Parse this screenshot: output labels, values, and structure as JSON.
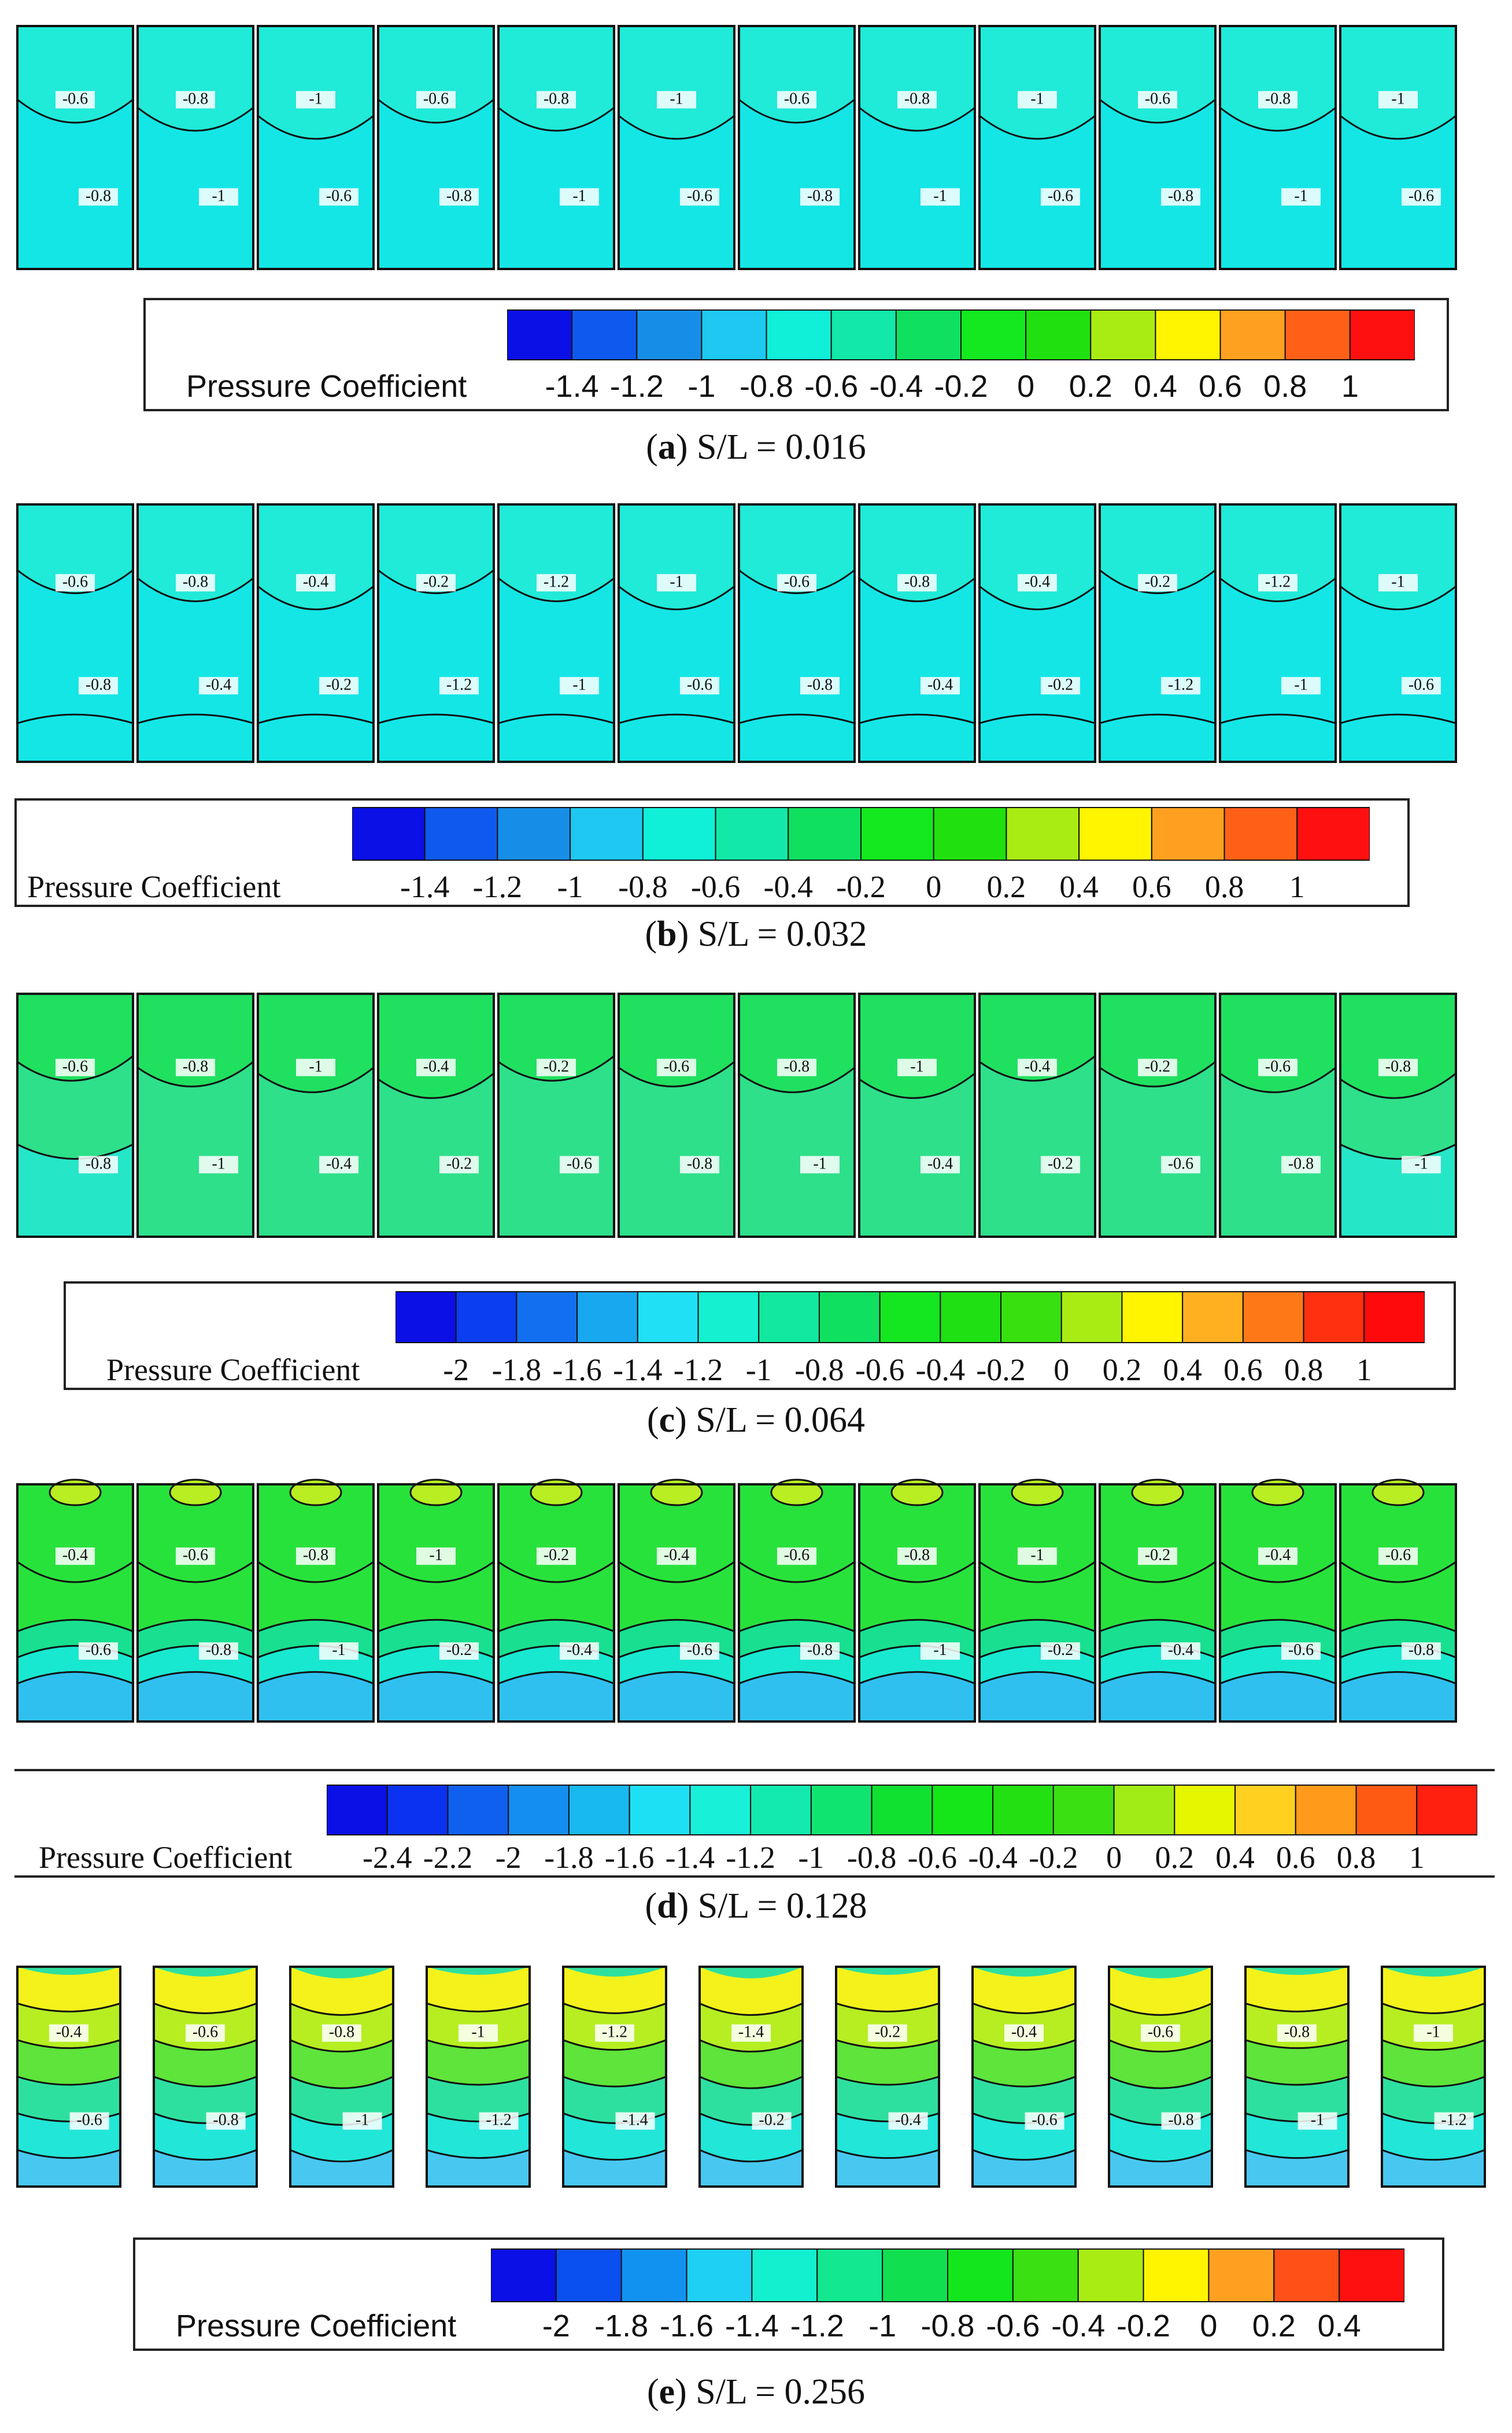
{
  "figure": {
    "panels": [
      {
        "id": "a",
        "letter": "a",
        "caption_rest": " S/L = 0.016",
        "legend_title": "Pressure Coefficient",
        "legend_ticks": [
          "-1.4",
          "-1.2",
          "-1",
          "-0.8",
          "-0.6",
          "-0.4",
          "-0.2",
          "0",
          "0.2",
          "0.4",
          "0.6",
          "0.8",
          "1"
        ],
        "legend_colors": [
          "#0a10e6",
          "#0f5aee",
          "#168ee8",
          "#1ec8f0",
          "#10f0d8",
          "#12e8a8",
          "#0fe060",
          "#14e81e",
          "#20e010",
          "#a8ec14",
          "#fff500",
          "#ffa020",
          "#ff6018",
          "#ff1010"
        ],
        "field_color": "#14e6e6",
        "contour_labels": [
          "-0.6",
          "-0.8",
          "-1"
        ]
      },
      {
        "id": "b",
        "letter": "b",
        "caption_rest": " S/L = 0.032",
        "legend_title": "Pressure Coefficient",
        "legend_ticks": [
          "-1.4",
          "-1.2",
          "-1",
          "-0.8",
          "-0.6",
          "-0.4",
          "-0.2",
          "0",
          "0.2",
          "0.4",
          "0.6",
          "0.8",
          "1"
        ],
        "legend_colors": [
          "#0a10e6",
          "#0f5aee",
          "#168ee8",
          "#1ec8f0",
          "#10f0d8",
          "#12e8a8",
          "#0fe060",
          "#14e81e",
          "#20e010",
          "#a8ec14",
          "#fff500",
          "#ffa020",
          "#ff6018",
          "#ff1010"
        ],
        "field_color": "#14e6e6",
        "contour_labels": [
          "-0.6",
          "-0.8",
          "-0.4",
          "-0.2",
          "-1.2",
          "-1"
        ]
      },
      {
        "id": "c",
        "letter": "c",
        "caption_rest": " S/L = 0.064",
        "legend_title": "Pressure Coefficient",
        "legend_ticks": [
          "-2",
          "-1.8",
          "-1.6",
          "-1.4",
          "-1.2",
          "-1",
          "-0.8",
          "-0.6",
          "-0.4",
          "-0.2",
          "0",
          "0.2",
          "0.4",
          "0.6",
          "0.8",
          "1"
        ],
        "legend_colors": [
          "#0a10e6",
          "#0a3ef0",
          "#1270f0",
          "#18a8f0",
          "#20e0f6",
          "#14f0d0",
          "#12e8a0",
          "#10e060",
          "#14e620",
          "#1ee012",
          "#38e010",
          "#a8ec14",
          "#fff500",
          "#ffb020",
          "#ff7818",
          "#ff3010",
          "#ff0a0a"
        ],
        "field_color": "#20e060",
        "contour_labels": [
          "-0.6",
          "-0.8",
          "-1",
          "-0.4",
          "-0.2"
        ]
      },
      {
        "id": "d",
        "letter": "d",
        "caption_rest": " S/L = 0.128",
        "legend_title": "Pressure Coefficient",
        "legend_ticks": [
          "-2.4",
          "-2.2",
          "-2",
          "-1.8",
          "-1.6",
          "-1.4",
          "-1.2",
          "-1",
          "-0.8",
          "-0.6",
          "-0.4",
          "-0.2",
          "0",
          "0.2",
          "0.4",
          "0.6",
          "0.8",
          "1"
        ],
        "legend_colors": [
          "#0a10e6",
          "#0a32f0",
          "#1060f0",
          "#148ef0",
          "#18b8f0",
          "#1ee0f4",
          "#18f0d8",
          "#12eab0",
          "#10e470",
          "#10e030",
          "#14e618",
          "#22e012",
          "#3ae012",
          "#a0ec14",
          "#e6f600",
          "#ffd020",
          "#ff9a1a",
          "#ff5a14",
          "#ff2010"
        ],
        "field_color": "#28e23c",
        "contour_labels": [
          "-0.4",
          "-0.6",
          "-0.8",
          "-1",
          "-0.2"
        ]
      },
      {
        "id": "e",
        "letter": "e",
        "caption_rest": " S/L = 0.256",
        "legend_title": "Pressure Coefficient",
        "legend_ticks": [
          "-2",
          "-1.8",
          "-1.6",
          "-1.4",
          "-1.2",
          "-1",
          "-0.8",
          "-0.6",
          "-0.4",
          "-0.2",
          "0",
          "0.2",
          "0.4"
        ],
        "legend_colors": [
          "#0a10e6",
          "#0a50f0",
          "#1292f0",
          "#1ed0f4",
          "#12f0d0",
          "#12e890",
          "#10e050",
          "#14e61e",
          "#3ae012",
          "#a8ec14",
          "#fff500",
          "#ffa020",
          "#ff5018",
          "#ff1010"
        ],
        "field_color": "#28e8c0",
        "contour_labels": [
          "-0.4",
          "-0.6",
          "-0.8",
          "-1",
          "-1.2",
          "-1.4",
          "-0.2"
        ]
      }
    ]
  }
}
